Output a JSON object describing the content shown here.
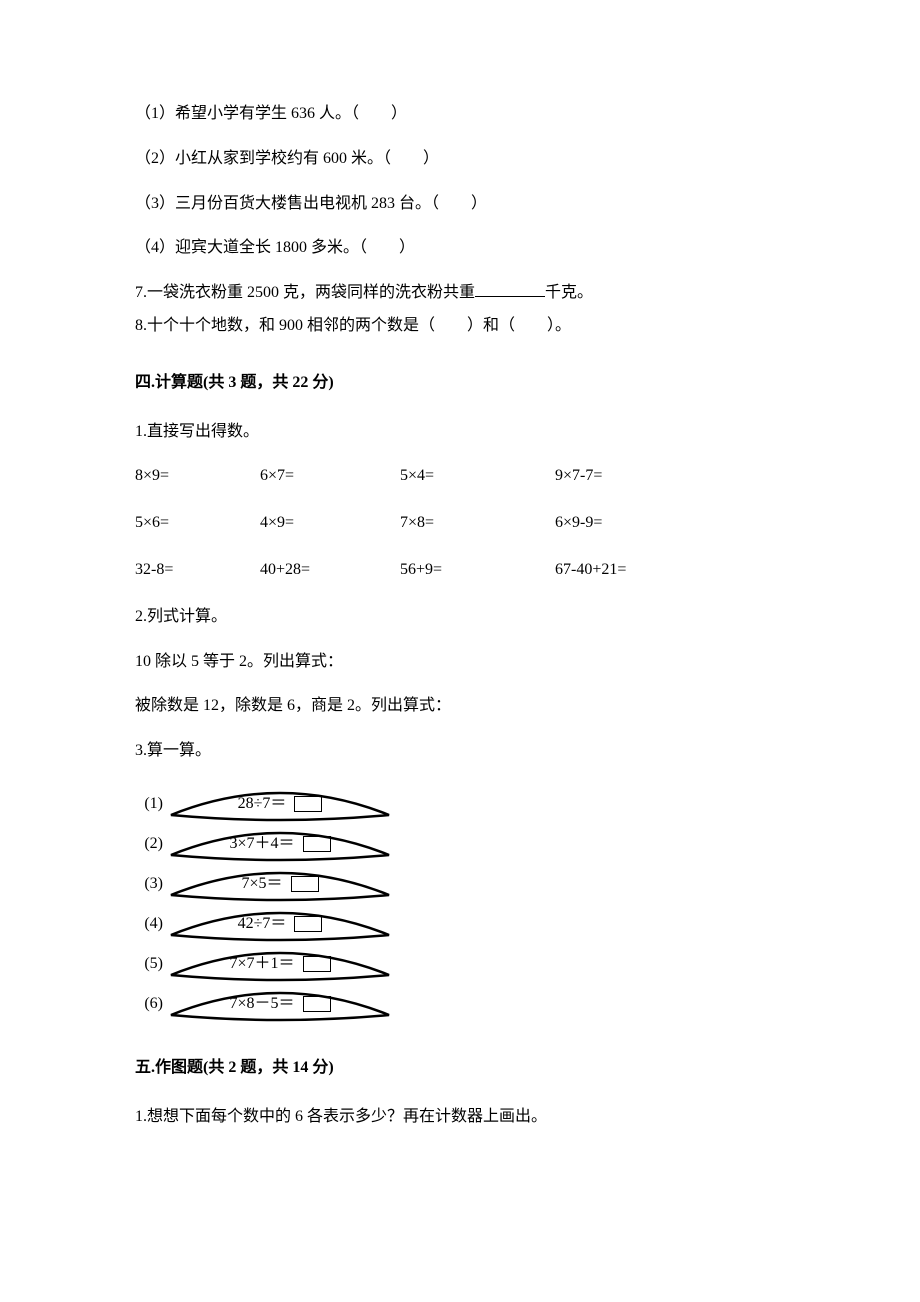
{
  "q_pre": {
    "item1": "（1）希望小学有学生 636 人。（　　）",
    "item2": "（2）小红从家到学校约有 600 米。（　　）",
    "item3": "（3）三月份百货大楼售出电视机 283 台。（　　）",
    "item4": "（4）迎宾大道全长 1800 多米。（　　）"
  },
  "q7": {
    "pre": "7.一袋洗衣粉重 2500 克，两袋同样的洗衣粉共重",
    "post": "千克。"
  },
  "q8": "8.十个十个地数，和 900 相邻的两个数是（　　）和（　　）。",
  "section4": {
    "header": "四.计算题(共 3 题，共 22 分)",
    "q1": {
      "title": "1.直接写出得数。",
      "rows": [
        {
          "c1": "8×9=",
          "c2": "6×7=",
          "c3": "5×4=",
          "c4": "9×7-7="
        },
        {
          "c1": "5×6=",
          "c2": "4×9=",
          "c3": "7×8=",
          "c4": "6×9-9="
        },
        {
          "c1": "32-8=",
          "c2": "40+28=",
          "c3": "56+9=",
          "c4": "67-40+21="
        }
      ]
    },
    "q2": {
      "title": "2.列式计算。",
      "line1": "10 除以 5 等于 2。列出算式：",
      "line2": "被除数是 12，除数是 6，商是 2。列出算式："
    },
    "q3": {
      "title": "3.算一算。",
      "leaves": [
        {
          "num": "(1)",
          "expr": "28÷7＝"
        },
        {
          "num": "(2)",
          "expr": "3×7＋4＝"
        },
        {
          "num": "(3)",
          "expr": "7×5＝"
        },
        {
          "num": "(4)",
          "expr": "42÷7＝"
        },
        {
          "num": "(5)",
          "expr": "7×7＋1＝"
        },
        {
          "num": "(6)",
          "expr": "7×8－5＝"
        }
      ]
    }
  },
  "section5": {
    "header": "五.作图题(共 2 题，共 14 分)",
    "q1": "1.想想下面每个数中的 6 各表示多少？再在计数器上画出。"
  },
  "style": {
    "leaf_stroke": "#000000",
    "leaf_stroke_width": 2.5,
    "leaf_fill": "#ffffff"
  }
}
